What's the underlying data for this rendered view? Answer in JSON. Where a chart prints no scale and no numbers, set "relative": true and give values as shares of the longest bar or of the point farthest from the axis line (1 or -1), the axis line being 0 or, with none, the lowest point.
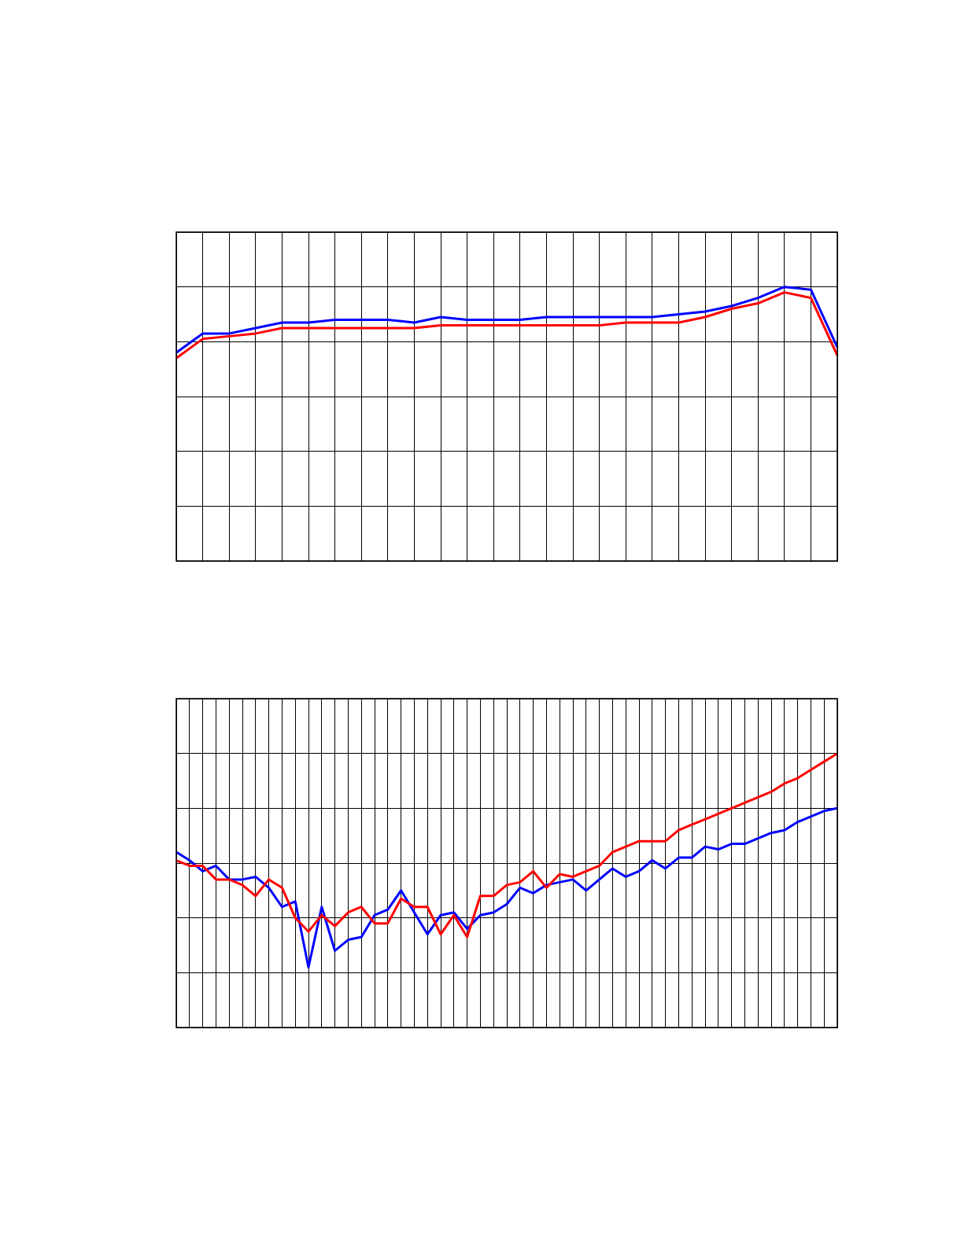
{
  "chart_data": [
    {
      "type": "line",
      "relative": true,
      "grid": true,
      "legend": false,
      "tick_labels": false,
      "marker": "none",
      "line_style": "solid",
      "categories": [
        null,
        null,
        null,
        null,
        null,
        null,
        null,
        null,
        null,
        null,
        null,
        null,
        null,
        null,
        null,
        null,
        null,
        null,
        null,
        null,
        null,
        null,
        null,
        null,
        null,
        null
      ],
      "series": [
        {
          "color": "#ff0000",
          "values": [
            0.74,
            0.81,
            0.82,
            0.83,
            0.85,
            0.85,
            0.85,
            0.85,
            0.85,
            0.85,
            0.86,
            0.86,
            0.86,
            0.86,
            0.86,
            0.86,
            0.86,
            0.87,
            0.87,
            0.87,
            0.89,
            0.92,
            0.94,
            0.98,
            0.96,
            0.75
          ]
        },
        {
          "color": "#0000ff",
          "values": [
            0.76,
            0.83,
            0.83,
            0.85,
            0.87,
            0.87,
            0.88,
            0.88,
            0.88,
            0.87,
            0.89,
            0.88,
            0.88,
            0.88,
            0.89,
            0.89,
            0.89,
            0.89,
            0.89,
            0.9,
            0.91,
            0.93,
            0.96,
            1,
            0.99,
            0.78
          ]
        }
      ]
    },
    {
      "type": "line",
      "relative": true,
      "grid": true,
      "legend": false,
      "tick_labels": false,
      "marker": "none",
      "line_style": "solid",
      "categories": [
        null,
        null,
        null,
        null,
        null,
        null,
        null,
        null,
        null,
        null,
        null,
        null,
        null,
        null,
        null,
        null,
        null,
        null,
        null,
        null,
        null,
        null,
        null,
        null,
        null,
        null,
        null,
        null,
        null,
        null,
        null,
        null,
        null,
        null,
        null,
        null,
        null,
        null,
        null,
        null,
        null,
        null,
        null,
        null,
        null,
        null,
        null,
        null,
        null,
        null,
        null
      ],
      "series": [
        {
          "color": "#ff0000",
          "values": [
            0.61,
            0.59,
            0.59,
            0.54,
            0.54,
            0.52,
            0.48,
            0.54,
            0.51,
            0.4,
            0.35,
            0.41,
            0.37,
            0.42,
            0.44,
            0.38,
            0.38,
            0.47,
            0.44,
            0.44,
            0.34,
            0.41,
            0.33,
            0.48,
            0.48,
            0.52,
            0.53,
            0.57,
            0.51,
            0.56,
            0.55,
            0.57,
            0.59,
            0.64,
            0.66,
            0.68,
            0.68,
            0.68,
            0.72,
            0.74,
            0.76,
            0.78,
            0.8,
            0.82,
            0.84,
            0.86,
            0.89,
            0.91,
            0.94,
            0.97,
            1
          ]
        },
        {
          "color": "#0000ff",
          "values": [
            0.64,
            0.61,
            0.57,
            0.59,
            0.54,
            0.54,
            0.55,
            0.51,
            0.44,
            0.46,
            0.22,
            0.44,
            0.28,
            0.32,
            0.33,
            0.41,
            0.43,
            0.5,
            0.42,
            0.34,
            0.41,
            0.42,
            0.36,
            0.41,
            0.42,
            0.45,
            0.51,
            0.49,
            0.52,
            0.53,
            0.54,
            0.5,
            0.54,
            0.58,
            0.55,
            0.57,
            0.61,
            0.58,
            0.62,
            0.62,
            0.66,
            0.65,
            0.67,
            0.67,
            0.69,
            0.71,
            0.72,
            0.75,
            0.77,
            0.79,
            0.8
          ]
        }
      ]
    }
  ]
}
